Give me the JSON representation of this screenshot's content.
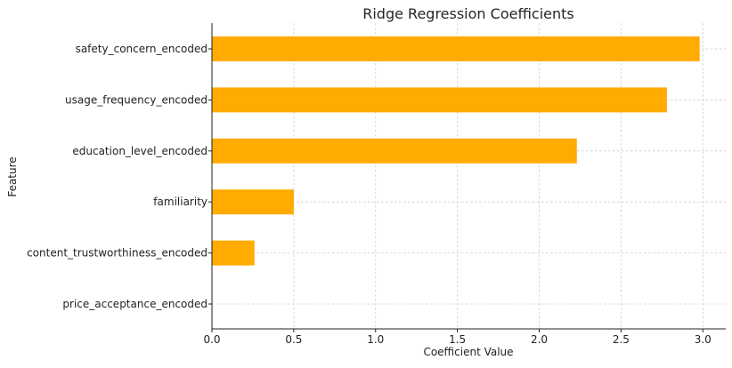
{
  "chart_data": {
    "type": "bar",
    "orientation": "horizontal",
    "title": "Ridge Regression Coefficients",
    "xlabel": "Coefficient Value",
    "ylabel": "Feature",
    "categories": [
      "safety_concern_encoded",
      "usage_frequency_encoded",
      "education_level_encoded",
      "familiarity",
      "content_trustworthiness_encoded",
      "price_acceptance_encoded"
    ],
    "values": [
      2.98,
      2.78,
      2.23,
      0.5,
      0.26,
      0.0
    ],
    "xlim": [
      0,
      3.14
    ],
    "xticks": [
      0.0,
      0.5,
      1.0,
      1.5,
      2.0,
      2.5,
      3.0
    ],
    "xtick_labels": [
      "0.0",
      "0.5",
      "1.0",
      "1.5",
      "2.0",
      "2.5",
      "3.0"
    ],
    "grid": true,
    "legend": "none",
    "colors": {
      "bar": "#ffab00"
    }
  }
}
